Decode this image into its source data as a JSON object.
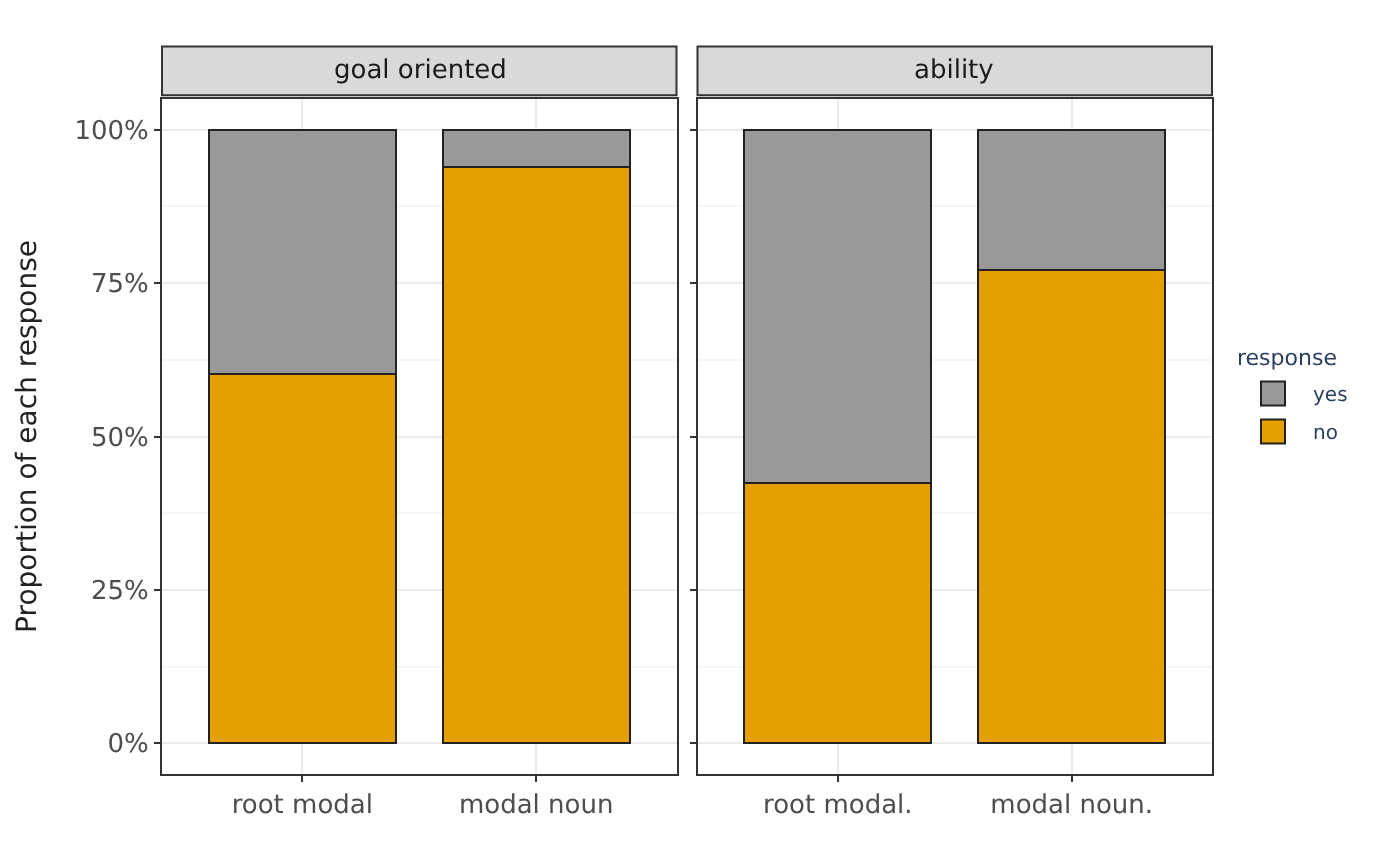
{
  "chart_data": [
    {
      "type": "bar",
      "title": "goal oriented",
      "ylabel": "Proportion of each response",
      "legend_title": "response",
      "categories": [
        "root modal",
        "modal noun"
      ],
      "stacked": true,
      "series": [
        {
          "name": "no",
          "color": "#e69f00",
          "values": [
            60.2,
            93.9
          ]
        },
        {
          "name": "yes",
          "color": "#999999",
          "values": [
            39.8,
            6.1
          ]
        }
      ],
      "ylim": [
        -5,
        105
      ],
      "yticks": [
        {
          "value": 0,
          "label": "0%"
        },
        {
          "value": 25,
          "label": "25%"
        },
        {
          "value": 50,
          "label": "50%"
        },
        {
          "value": 75,
          "label": "75%"
        },
        {
          "value": 100,
          "label": "100%"
        }
      ],
      "grid": true,
      "legend": "right"
    },
    {
      "type": "bar",
      "title": "ability",
      "categories": [
        "root modal.",
        "modal noun."
      ],
      "stacked": true,
      "series": [
        {
          "name": "no",
          "color": "#e69f00",
          "values": [
            42.4,
            77.2
          ]
        },
        {
          "name": "yes",
          "color": "#999999",
          "values": [
            57.6,
            22.8
          ]
        }
      ],
      "ylim": [
        -5,
        105
      ],
      "yticks": [
        {
          "value": 0,
          "label": null
        },
        {
          "value": 25,
          "label": null
        },
        {
          "value": 50,
          "label": null
        },
        {
          "value": 75,
          "label": null
        },
        {
          "value": 100,
          "label": null
        }
      ],
      "grid": true,
      "legend": "right",
      "tick_labels": "x"
    }
  ]
}
